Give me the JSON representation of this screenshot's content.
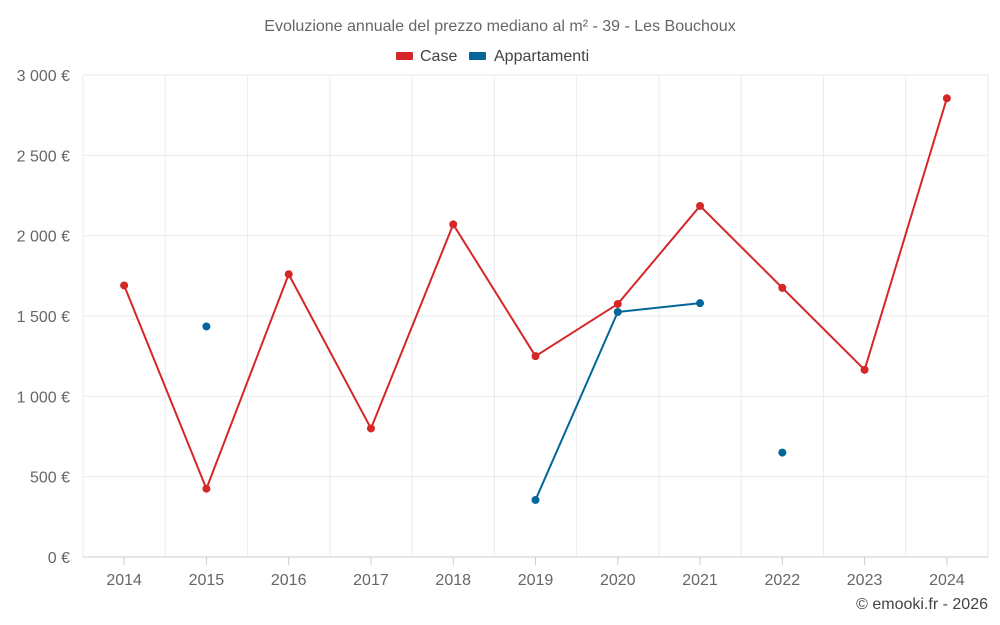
{
  "chart_data": {
    "type": "line",
    "title": "Evoluzione annuale del prezzo mediano al m² - 39 - Les Bouchoux",
    "xlabel": "",
    "ylabel": "",
    "categories": [
      "2014",
      "2015",
      "2016",
      "2017",
      "2018",
      "2019",
      "2020",
      "2021",
      "2022",
      "2023",
      "2024"
    ],
    "ylim": [
      0,
      3000
    ],
    "yticks": [
      0,
      500,
      1000,
      1500,
      2000,
      2500,
      3000
    ],
    "ytick_labels": [
      "0 €",
      "500 €",
      "1 000 €",
      "1 500 €",
      "2 000 €",
      "2 500 €",
      "3 000 €"
    ],
    "grid": true,
    "legend_position": "top-center",
    "series": [
      {
        "name": "Case",
        "color": "#d62728",
        "values": [
          1690,
          425,
          1760,
          800,
          2070,
          1250,
          1575,
          2185,
          1675,
          1165,
          2855
        ]
      },
      {
        "name": "Appartamenti",
        "color": "#03669b",
        "values": [
          null,
          1435,
          null,
          null,
          null,
          355,
          1525,
          1580,
          null,
          null,
          null
        ],
        "extra_points": [
          {
            "x": "2022",
            "y": 650
          }
        ]
      }
    ],
    "credit": "© emooki.fr - 2026"
  }
}
